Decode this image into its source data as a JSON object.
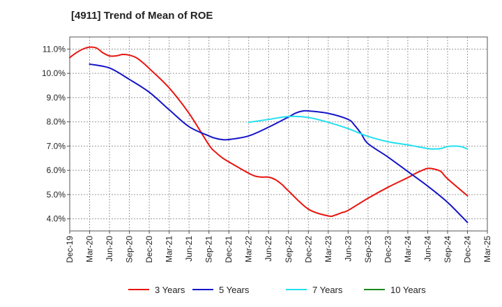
{
  "chart_data": {
    "type": "line",
    "title": "[4911]  Trend of Mean of ROE",
    "xlabel": "",
    "ylabel": "",
    "x_ticks": [
      "Dec-19",
      "Mar-20",
      "Jun-20",
      "Sep-20",
      "Dec-20",
      "Mar-21",
      "Jun-21",
      "Sep-21",
      "Dec-21",
      "Mar-22",
      "Jun-22",
      "Sep-22",
      "Dec-22",
      "Mar-23",
      "Jun-23",
      "Sep-23",
      "Dec-23",
      "Mar-24",
      "Jun-24",
      "Sep-24",
      "Dec-24",
      "Mar-25"
    ],
    "y_ticks": [
      "4.0%",
      "5.0%",
      "6.0%",
      "7.0%",
      "8.0%",
      "9.0%",
      "10.0%",
      "11.0%"
    ],
    "ylim": [
      3.5,
      11.5
    ],
    "grid": true,
    "legend_position": "bottom",
    "series": [
      {
        "name": "3 Years",
        "color": "#e8140f",
        "x": [
          "Dec-19",
          "Jan-20",
          "Feb-20",
          "Mar-20",
          "Apr-20",
          "May-20",
          "Jun-20",
          "Jul-20",
          "Aug-20",
          "Sep-20",
          "Oct-20",
          "Nov-20",
          "Dec-20",
          "Mar-21",
          "Jun-21",
          "Sep-21",
          "Oct-21",
          "Nov-21",
          "Dec-21",
          "Mar-22",
          "Apr-22",
          "May-22",
          "Jun-22",
          "Jul-22",
          "Aug-22",
          "Sep-22",
          "Dec-22",
          "Mar-23",
          "Apr-23",
          "May-23",
          "Jun-23",
          "Sep-23",
          "Dec-23",
          "Mar-24",
          "Apr-24",
          "May-24",
          "Jun-24",
          "Jul-24",
          "Aug-24",
          "Sep-24",
          "Dec-24"
        ],
        "values": [
          10.65,
          10.85,
          11.0,
          11.08,
          11.05,
          10.85,
          10.72,
          10.72,
          10.78,
          10.75,
          10.65,
          10.45,
          10.2,
          9.4,
          8.35,
          7.05,
          6.75,
          6.52,
          6.35,
          5.88,
          5.76,
          5.72,
          5.72,
          5.62,
          5.42,
          5.15,
          4.4,
          4.12,
          4.15,
          4.25,
          4.35,
          4.85,
          5.3,
          5.7,
          5.85,
          5.98,
          6.08,
          6.05,
          5.95,
          5.65,
          4.95
        ]
      },
      {
        "name": "5 Years",
        "color": "#1414c8",
        "x": [
          "Mar-20",
          "Jun-20",
          "Sep-20",
          "Dec-20",
          "Mar-21",
          "Jun-21",
          "Sep-21",
          "Oct-21",
          "Nov-21",
          "Dec-21",
          "Mar-22",
          "Jun-22",
          "Sep-22",
          "Oct-22",
          "Nov-22",
          "Dec-22",
          "Mar-23",
          "Jun-23",
          "Jul-23",
          "Aug-23",
          "Sep-23",
          "Dec-23",
          "Mar-24",
          "Jun-24",
          "Sep-24",
          "Dec-24"
        ],
        "values": [
          10.38,
          10.22,
          9.75,
          9.22,
          8.5,
          7.8,
          7.42,
          7.32,
          7.27,
          7.27,
          7.42,
          7.78,
          8.2,
          8.35,
          8.44,
          8.45,
          8.35,
          8.1,
          7.85,
          7.5,
          7.1,
          6.55,
          5.95,
          5.35,
          4.68,
          3.85
        ]
      },
      {
        "name": "7 Years",
        "color": "#22e0f0",
        "x": [
          "Mar-22",
          "Jun-22",
          "Sep-22",
          "Dec-22",
          "Mar-23",
          "Jun-23",
          "Sep-23",
          "Dec-23",
          "Mar-24",
          "Jun-24",
          "Jul-24",
          "Aug-24",
          "Sep-24",
          "Oct-24",
          "Nov-24",
          "Dec-24"
        ],
        "values": [
          7.98,
          8.1,
          8.22,
          8.18,
          7.98,
          7.72,
          7.4,
          7.18,
          7.05,
          6.9,
          6.88,
          6.9,
          6.98,
          7.0,
          6.98,
          6.88
        ]
      },
      {
        "name": "10 Years",
        "color": "#1a8a1a",
        "x": [],
        "values": []
      }
    ]
  }
}
